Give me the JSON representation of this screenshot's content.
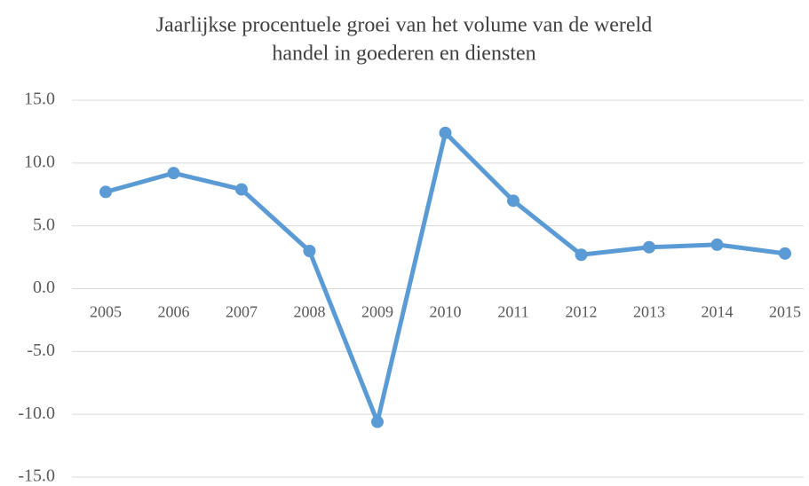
{
  "chart_data": {
    "type": "line",
    "title": [
      "Jaarlijkse procentuele groei van het volume van de wereld",
      "handel in goederen en diensten"
    ],
    "categories": [
      "2005",
      "2006",
      "2007",
      "2008",
      "2009",
      "2010",
      "2011",
      "2012",
      "2013",
      "2014",
      "2015"
    ],
    "series": [
      {
        "color": "#5b9bd5",
        "values": [
          7.7,
          9.2,
          7.9,
          3.0,
          -10.6,
          12.4,
          7.0,
          2.7,
          3.3,
          3.5,
          2.8
        ]
      }
    ],
    "ylim": [
      -15,
      15
    ],
    "yticks": [
      {
        "value": -15,
        "label": "-15.0"
      },
      {
        "value": -10,
        "label": "-10.0"
      },
      {
        "value": -5,
        "label": "-5.0"
      },
      {
        "value": 0,
        "label": "0.0"
      },
      {
        "value": 5,
        "label": "5.0"
      },
      {
        "value": 10,
        "label": "10.0"
      },
      {
        "value": 15,
        "label": "15.0"
      }
    ],
    "grid": true
  }
}
